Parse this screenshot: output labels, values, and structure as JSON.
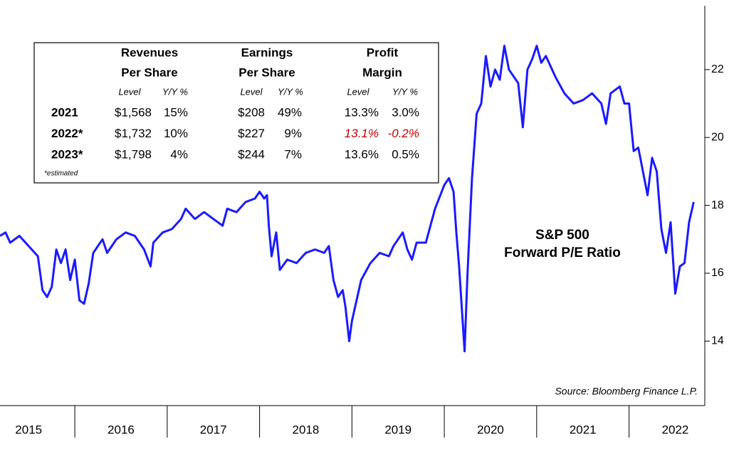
{
  "chart_data": {
    "type": "line",
    "annotation": [
      "S&P 500",
      "Forward P/E Ratio"
    ],
    "source": "Source: Bloomberg Finance L.P.",
    "x": [
      2015.19,
      2015.25,
      2015.3,
      2015.4,
      2015.5,
      2015.6,
      2015.65,
      2015.7,
      2015.75,
      2015.8,
      2015.85,
      2015.9,
      2015.95,
      2016.0,
      2016.05,
      2016.1,
      2016.15,
      2016.2,
      2016.3,
      2016.35,
      2016.45,
      2016.55,
      2016.65,
      2016.75,
      2016.82,
      2016.85,
      2016.95,
      2017.05,
      2017.15,
      2017.2,
      2017.3,
      2017.4,
      2017.5,
      2017.6,
      2017.65,
      2017.75,
      2017.85,
      2017.95,
      2018.0,
      2018.05,
      2018.08,
      2018.1,
      2018.13,
      2018.18,
      2018.22,
      2018.3,
      2018.4,
      2018.5,
      2018.6,
      2018.7,
      2018.75,
      2018.8,
      2018.85,
      2018.9,
      2018.93,
      2018.97,
      2019.0,
      2019.1,
      2019.2,
      2019.3,
      2019.4,
      2019.45,
      2019.55,
      2019.6,
      2019.65,
      2019.7,
      2019.8,
      2019.9,
      2020.0,
      2020.05,
      2020.1,
      2020.13,
      2020.16,
      2020.22,
      2020.25,
      2020.3,
      2020.35,
      2020.4,
      2020.45,
      2020.5,
      2020.55,
      2020.6,
      2020.65,
      2020.7,
      2020.75,
      2020.8,
      2020.85,
      2020.9,
      2020.95,
      2021.0,
      2021.05,
      2021.1,
      2021.2,
      2021.3,
      2021.4,
      2021.5,
      2021.6,
      2021.7,
      2021.75,
      2021.8,
      2021.9,
      2021.95,
      2022.0,
      2022.05,
      2022.1,
      2022.15,
      2022.2,
      2022.25,
      2022.3,
      2022.35,
      2022.4,
      2022.45,
      2022.5,
      2022.55,
      2022.6,
      2022.65,
      2022.7
    ],
    "series": [
      {
        "name": "Forward P/E",
        "color": "#1a1aff",
        "values": [
          17.1,
          17.2,
          16.9,
          17.1,
          16.8,
          16.5,
          15.5,
          15.3,
          15.6,
          16.7,
          16.3,
          16.7,
          15.8,
          16.4,
          15.2,
          15.1,
          15.7,
          16.6,
          17.0,
          16.6,
          17.0,
          17.2,
          17.1,
          16.7,
          16.2,
          16.9,
          17.2,
          17.3,
          17.6,
          17.9,
          17.6,
          17.8,
          17.6,
          17.4,
          17.9,
          17.8,
          18.1,
          18.2,
          18.4,
          18.2,
          18.3,
          17.4,
          16.5,
          17.2,
          16.1,
          16.4,
          16.3,
          16.6,
          16.7,
          16.6,
          16.8,
          15.8,
          15.3,
          15.5,
          15.0,
          14.0,
          14.6,
          15.8,
          16.3,
          16.6,
          16.5,
          16.8,
          17.2,
          16.7,
          16.4,
          16.9,
          16.9,
          17.9,
          18.6,
          18.8,
          18.4,
          17.2,
          16.2,
          13.7,
          15.9,
          18.8,
          20.7,
          21.0,
          22.4,
          21.5,
          22.0,
          21.7,
          22.7,
          22.0,
          21.8,
          21.6,
          20.3,
          22.0,
          22.3,
          22.7,
          22.2,
          22.4,
          21.8,
          21.3,
          21.0,
          21.1,
          21.3,
          21.0,
          20.4,
          21.3,
          21.5,
          21.0,
          21.0,
          19.6,
          19.7,
          19.0,
          18.3,
          19.4,
          19.0,
          17.3,
          16.6,
          17.5,
          15.4,
          16.2,
          16.3,
          17.5,
          18.1
        ]
      }
    ],
    "xlim": [
      2015.19,
      2022.82
    ],
    "xticks": [
      2016,
      2017,
      2018,
      2019,
      2020,
      2021,
      2022
    ],
    "year_labels": [
      "2015",
      "2016",
      "2017",
      "2018",
      "2019",
      "2020",
      "2021",
      "2022"
    ],
    "ylim": [
      12.1,
      24.05
    ],
    "yticks": [
      14,
      16,
      18,
      20,
      22
    ],
    "table": {
      "headers": [
        [
          "Revenues",
          "Per Share"
        ],
        [
          "Earnings",
          "Per Share"
        ],
        [
          "Profit",
          "Margin"
        ]
      ],
      "subheaders": [
        "Level",
        "Y/Y %",
        "Level",
        "Y/Y %",
        "Level",
        "Y/Y %"
      ],
      "rows": [
        {
          "label": "2021",
          "cells": [
            "$1,568",
            "15%",
            "$208",
            "49%",
            "13.3%",
            "3.0%"
          ]
        },
        {
          "label": "2022*",
          "cells": [
            "$1,732",
            "10%",
            "$227",
            "9%",
            "13.1%",
            "-0.2%"
          ]
        },
        {
          "label": "2023*",
          "cells": [
            "$1,798",
            "4%",
            "$244",
            "7%",
            "13.6%",
            "0.5%"
          ]
        }
      ],
      "note": "*estimated",
      "highlight": {
        "row": 1,
        "cols": [
          4,
          5
        ],
        "color": "#c00000"
      }
    }
  }
}
